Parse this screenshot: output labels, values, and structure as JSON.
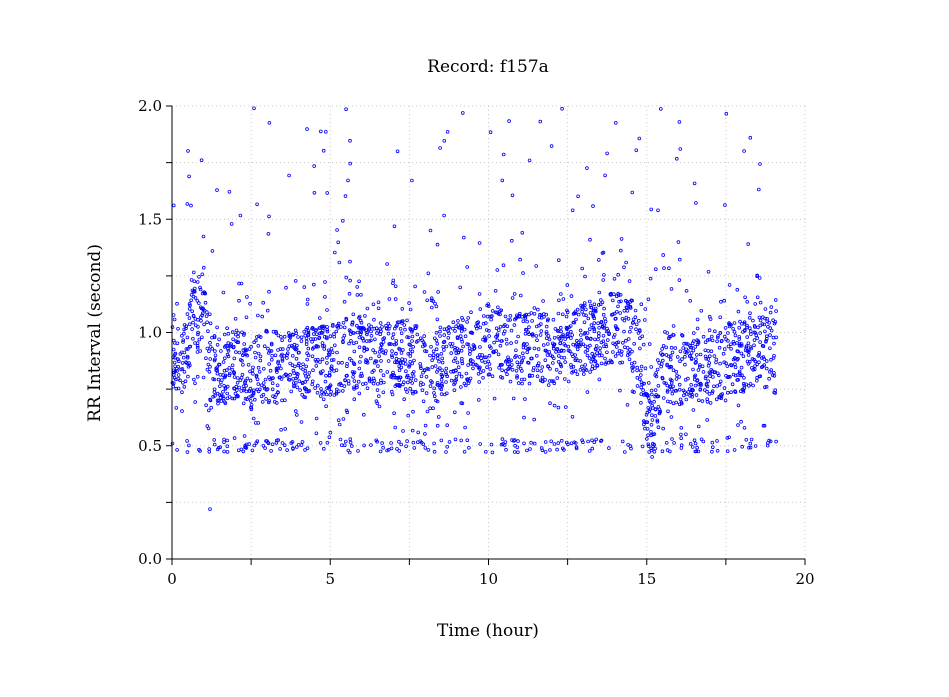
{
  "chart_data": {
    "type": "scatter",
    "title": "Record:  f157a",
    "xlabel": "Time (hour)",
    "ylabel": "RR Interval (second)",
    "xlim": [
      0,
      20
    ],
    "ylim": [
      0,
      2.0
    ],
    "x_ticks": [
      "0",
      "5",
      "10",
      "15",
      "20"
    ],
    "y_ticks": [
      "0.0",
      "0.5",
      "1.0",
      "1.5",
      "2.0"
    ],
    "grid": true,
    "marker_color": "#0000ff",
    "series": [
      {
        "x": [
          0.0,
          0.2,
          0.4,
          0.5,
          0.6,
          0.8,
          1.0,
          1.1,
          1.2,
          1.3,
          1.5,
          1.7,
          2.0,
          2.5,
          3.0,
          3.5,
          4.0,
          4.5,
          5.0,
          5.5,
          6.0,
          6.5,
          7.0,
          7.5,
          8.0,
          8.2,
          8.5,
          9.0,
          9.5,
          10.0,
          10.5,
          11.0,
          11.5,
          12.0,
          12.5,
          13.0,
          13.5,
          14.0,
          14.5,
          14.7,
          15.0,
          15.2,
          15.5,
          16.0,
          16.5,
          17.0,
          17.5,
          18.0,
          18.5,
          19.0,
          19.1
        ],
        "y": [
          0.92,
          0.88,
          0.9,
          0.95,
          1.02,
          1.05,
          1.1,
          0.95,
          0.82,
          0.85,
          0.84,
          0.83,
          0.86,
          0.82,
          0.85,
          0.84,
          0.86,
          0.88,
          0.87,
          0.9,
          0.92,
          0.9,
          0.88,
          0.9,
          0.85,
          0.8,
          0.88,
          0.9,
          0.92,
          0.97,
          0.95,
          0.93,
          0.95,
          0.92,
          0.94,
          0.97,
          1.0,
          1.02,
          1.0,
          0.95,
          0.65,
          0.6,
          0.85,
          0.84,
          0.86,
          0.85,
          0.88,
          0.9,
          0.92,
          0.9,
          0.88
        ]
      }
    ]
  }
}
